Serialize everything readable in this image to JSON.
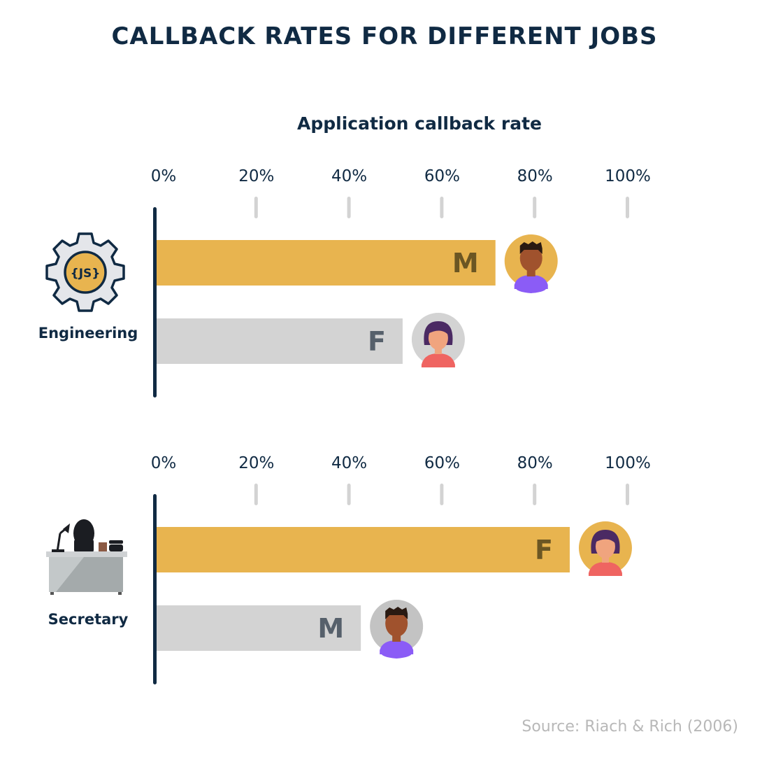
{
  "title": "CALLBACK RATES FOR DIFFERENT JOBS",
  "source": "Source: Riach & Rich (2006)",
  "chart_data": [
    {
      "type": "bar",
      "orientation": "horizontal",
      "xlabel": "Application callback rate",
      "xlim": [
        0,
        100
      ],
      "ticks": [
        "0%",
        "20%",
        "40%",
        "60%",
        "80%",
        "100%"
      ],
      "category": "Engineering",
      "icon": "gear-js-icon",
      "bars": [
        {
          "label": "M",
          "value": 73,
          "color": "#e8b44f",
          "avatar": "man-avatar",
          "avatar_bg": "#e8b44f"
        },
        {
          "label": "F",
          "value": 53,
          "color": "#d3d3d3",
          "avatar": "woman-avatar",
          "avatar_bg": "#d3d3d3"
        }
      ]
    },
    {
      "type": "bar",
      "orientation": "horizontal",
      "xlim": [
        0,
        100
      ],
      "ticks": [
        "0%",
        "20%",
        "40%",
        "60%",
        "80%",
        "100%"
      ],
      "category": "Secretary",
      "icon": "office-desk-icon",
      "bars": [
        {
          "label": "F",
          "value": 89,
          "color": "#e8b44f",
          "avatar": "woman-avatar",
          "avatar_bg": "#e8b44f"
        },
        {
          "label": "M",
          "value": 44,
          "color": "#d3d3d3",
          "avatar": "man-avatar",
          "avatar_bg": "#c3c3c3"
        }
      ]
    }
  ]
}
